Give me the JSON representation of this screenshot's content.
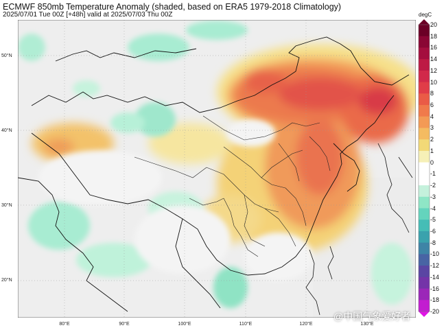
{
  "header": {
    "title": "ECMWF 850mb Temperature Anomaly (shaded, based on ERA5 1979-2018 Climatology)",
    "subtitle": "2025/07/01 Tue 00Z [+48h] valid at 2025/07/03 Thu 00Z"
  },
  "axes": {
    "lat_labels": [
      "50°N",
      "40°N",
      "30°N",
      "20°N"
    ],
    "lon_labels": [
      "80°E",
      "90°E",
      "100°E",
      "110°E",
      "120°E",
      "130°E"
    ]
  },
  "colorbar": {
    "unit": "degC",
    "ticks": [
      "20",
      "18",
      "16",
      "14",
      "12",
      "10",
      "8",
      "6",
      "4",
      "3",
      "2",
      "1",
      "0",
      "-1",
      "-2",
      "-3",
      "-4",
      "-5",
      "-6",
      "-8",
      "-10",
      "-12",
      "-14",
      "-16",
      "-18",
      "-20"
    ],
    "colors": [
      "#6b0026",
      "#8a0634",
      "#a40e3e",
      "#bd1a44",
      "#d1294a",
      "#e03c48",
      "#ea5b46",
      "#f07a4b",
      "#f39a55",
      "#f4bb61",
      "#f2d977",
      "#f6f0b7",
      "#ffffff",
      "#ffffff",
      "#c5f1dc",
      "#8fe6c6",
      "#64d4bd",
      "#45bdb6",
      "#3aa2ad",
      "#3e84a6",
      "#4864a4",
      "#5a45a3",
      "#7434a8",
      "#9b27b8",
      "#c21dd0",
      "#e014e6"
    ]
  },
  "watermark": "@中国气象爱好者"
}
